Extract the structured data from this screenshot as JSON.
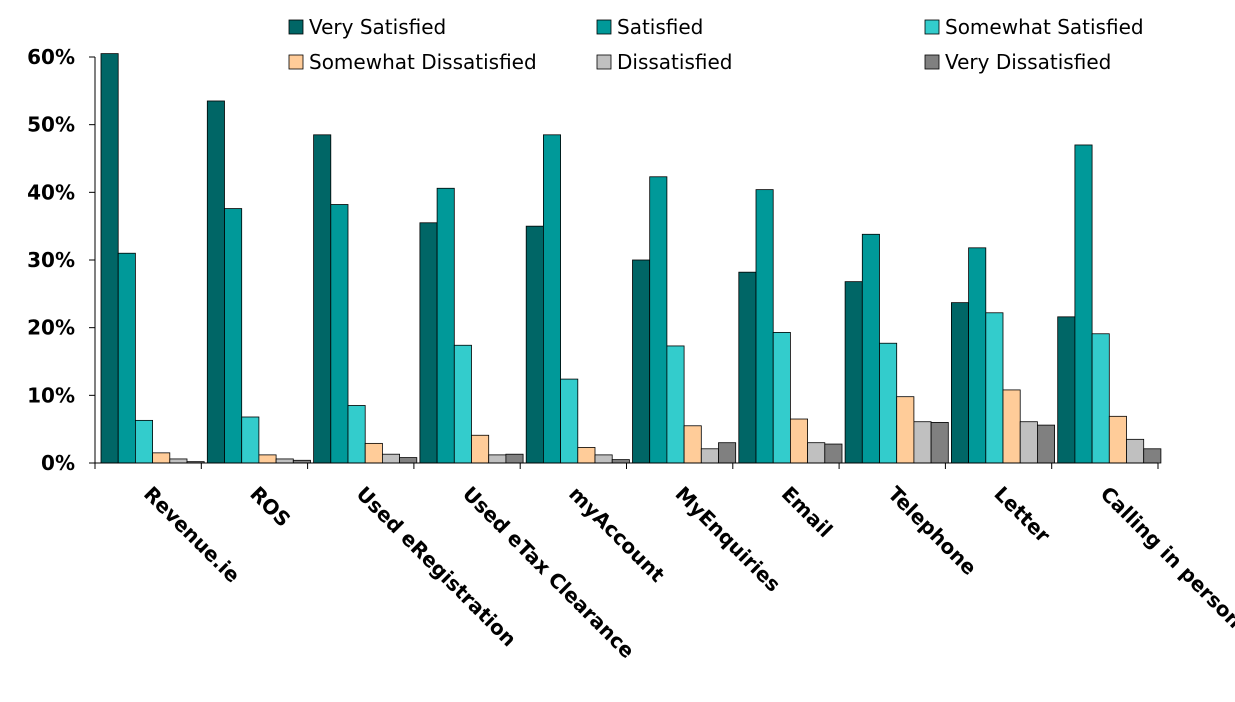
{
  "chart_data": {
    "type": "bar",
    "title": "",
    "xlabel": "",
    "ylabel": "",
    "ylim": [
      0,
      0.6
    ],
    "yticks": [
      "0%",
      "10%",
      "20%",
      "30%",
      "40%",
      "50%",
      "60%"
    ],
    "grid": false,
    "legend_position": "top",
    "categories": [
      "Revenue.ie",
      "ROS",
      "Used eRegistration",
      "Used eTax Clearance",
      "myAccount",
      "MyEnquiries",
      "Email",
      "Telephone",
      "Letter",
      "Calling in person"
    ],
    "series": [
      {
        "name": "Very Satisfied",
        "color": "#006666",
        "values": [
          0.605,
          0.535,
          0.485,
          0.355,
          0.35,
          0.3,
          0.282,
          0.268,
          0.237,
          0.216
        ]
      },
      {
        "name": "Satisfied",
        "color": "#009999",
        "values": [
          0.31,
          0.376,
          0.382,
          0.406,
          0.485,
          0.423,
          0.404,
          0.338,
          0.318,
          0.47
        ]
      },
      {
        "name": "Somewhat Satisfied",
        "color": "#33CCCC",
        "values": [
          0.063,
          0.068,
          0.085,
          0.174,
          0.124,
          0.173,
          0.193,
          0.177,
          0.222,
          0.191
        ]
      },
      {
        "name": "Somewhat Dissatisfied",
        "color": "#FFCC99",
        "values": [
          0.015,
          0.012,
          0.029,
          0.041,
          0.023,
          0.055,
          0.065,
          0.098,
          0.108,
          0.069
        ]
      },
      {
        "name": "Dissatisfied",
        "color": "#C0C0C0",
        "values": [
          0.006,
          0.006,
          0.013,
          0.012,
          0.012,
          0.021,
          0.03,
          0.061,
          0.061,
          0.035
        ]
      },
      {
        "name": "Very Dissatisfied",
        "color": "#808080",
        "values": [
          0.002,
          0.004,
          0.008,
          0.013,
          0.005,
          0.03,
          0.028,
          0.06,
          0.056,
          0.021
        ]
      }
    ]
  }
}
